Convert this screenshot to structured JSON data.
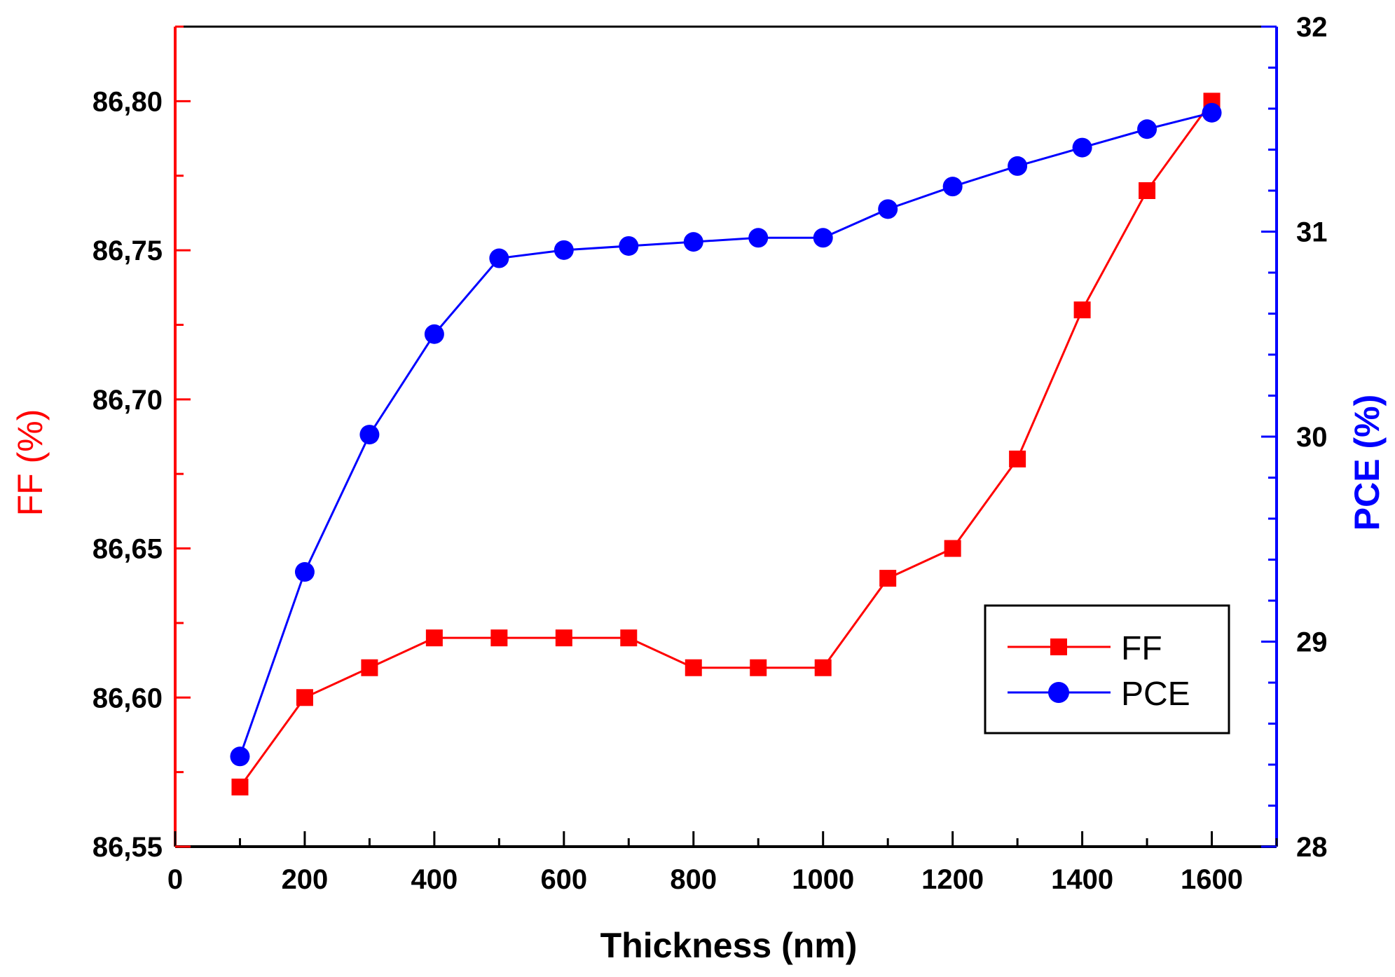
{
  "chart_data": {
    "type": "line",
    "xlabel": "Thickness (nm)",
    "ylabel_left": "FF (%)",
    "ylabel_right": "PCE (%)",
    "xlim": [
      0,
      1700
    ],
    "ylim_left": [
      86.55,
      86.825
    ],
    "ylim_right": [
      28,
      32
    ],
    "x_ticks": [
      0,
      200,
      400,
      600,
      800,
      1000,
      1200,
      1400,
      1600
    ],
    "x_tick_labels": [
      "0",
      "200",
      "400",
      "600",
      "800",
      "1000",
      "1200",
      "1400",
      "1600"
    ],
    "y_left_ticks": [
      86.55,
      86.6,
      86.65,
      86.7,
      86.75,
      86.8
    ],
    "y_left_tick_labels": [
      "86,55",
      "86,60",
      "86,65",
      "86,70",
      "86,75",
      "86,80"
    ],
    "y_right_ticks": [
      28,
      29,
      30,
      31,
      32
    ],
    "y_right_tick_labels": [
      "28",
      "29",
      "30",
      "31",
      "32"
    ],
    "legend_position": "center-right",
    "grid": false,
    "series": [
      {
        "name": "FF",
        "axis": "left",
        "color": "#ff0000",
        "marker": "square",
        "x": [
          100,
          200,
          300,
          400,
          500,
          600,
          700,
          800,
          900,
          1000,
          1100,
          1200,
          1300,
          1400,
          1500,
          1600
        ],
        "y": [
          86.57,
          86.6,
          86.61,
          86.62,
          86.62,
          86.62,
          86.62,
          86.61,
          86.61,
          86.61,
          86.64,
          86.65,
          86.68,
          86.73,
          86.77,
          86.8
        ]
      },
      {
        "name": "PCE",
        "axis": "right",
        "color": "#0000ff",
        "marker": "circle",
        "x": [
          100,
          200,
          300,
          400,
          500,
          600,
          700,
          800,
          900,
          1000,
          1100,
          1200,
          1300,
          1400,
          1500,
          1600
        ],
        "y": [
          28.44,
          29.34,
          30.01,
          30.5,
          30.87,
          30.91,
          30.93,
          30.95,
          30.97,
          30.97,
          31.11,
          31.22,
          31.32,
          31.41,
          31.5,
          31.58
        ]
      }
    ]
  }
}
